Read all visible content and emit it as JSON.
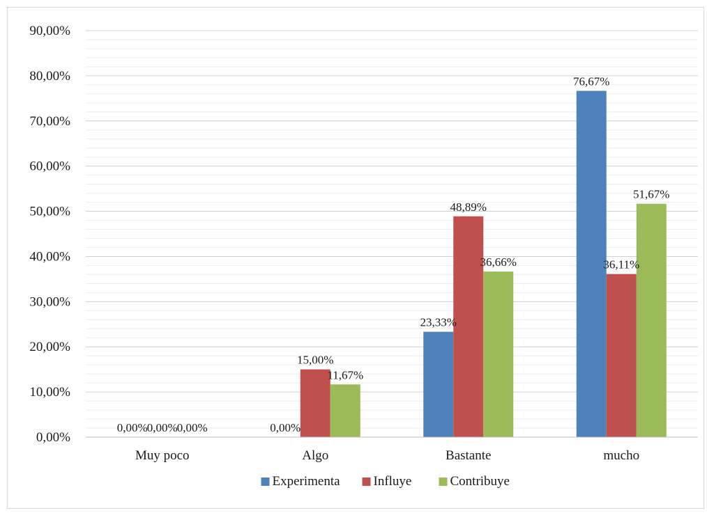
{
  "chart_data": {
    "type": "bar",
    "categories": [
      "Muy poco",
      "Algo",
      "Bastante",
      "mucho"
    ],
    "series": [
      {
        "name": "Experimenta",
        "values": [
          0.0,
          0.0,
          23.33,
          76.67
        ],
        "labels": [
          "0,00%",
          "0,00%",
          "23,33%",
          "76,67%"
        ]
      },
      {
        "name": "Influye",
        "values": [
          0.0,
          15.0,
          48.89,
          36.11
        ],
        "labels": [
          "0,00%",
          "15,00%",
          "48,89%",
          "36,11%"
        ]
      },
      {
        "name": "Contribuye",
        "values": [
          0.0,
          11.67,
          36.66,
          51.67
        ],
        "labels": [
          "0,00%",
          "11,67%",
          "36,66%",
          "51,67%"
        ]
      }
    ],
    "title": "",
    "xlabel": "",
    "ylabel": "",
    "ylim": [
      0,
      90
    ],
    "yticks": [
      "0,00%",
      "10,00%",
      "20,00%",
      "30,00%",
      "40,00%",
      "50,00%",
      "60,00%",
      "70,00%",
      "80,00%",
      "90,00%"
    ],
    "grid": true,
    "legend": "bottom",
    "colors": [
      "#4f81bd",
      "#c0504d",
      "#9bbb59"
    ]
  }
}
